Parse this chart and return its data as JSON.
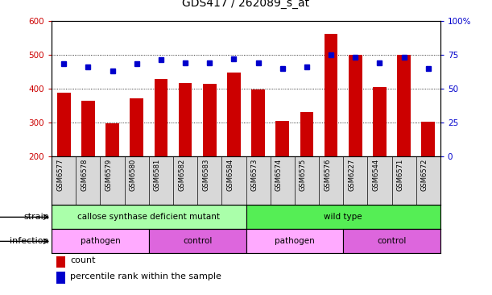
{
  "title": "GDS417 / 262089_s_at",
  "samples": [
    "GSM6577",
    "GSM6578",
    "GSM6579",
    "GSM6580",
    "GSM6581",
    "GSM6582",
    "GSM6583",
    "GSM6584",
    "GSM6573",
    "GSM6574",
    "GSM6575",
    "GSM6576",
    "GSM6227",
    "GSM6544",
    "GSM6571",
    "GSM6572"
  ],
  "counts": [
    388,
    365,
    298,
    370,
    428,
    416,
    413,
    447,
    397,
    304,
    330,
    561,
    500,
    405,
    500,
    303
  ],
  "percentiles": [
    68,
    66,
    63,
    68,
    71,
    69,
    69,
    72,
    69,
    65,
    66,
    75,
    73,
    69,
    73,
    65
  ],
  "ylim_left": [
    200,
    600
  ],
  "ylim_right": [
    0,
    100
  ],
  "yticks_left": [
    200,
    300,
    400,
    500,
    600
  ],
  "yticks_right": [
    0,
    25,
    50,
    75,
    100
  ],
  "bar_color": "#cc0000",
  "dot_color": "#0000cc",
  "bg_color": "#d8d8d8",
  "strain_groups": [
    {
      "label": "callose synthase deficient mutant",
      "start": 0,
      "end": 8,
      "color": "#aaffaa"
    },
    {
      "label": "wild type",
      "start": 8,
      "end": 16,
      "color": "#55ee55"
    }
  ],
  "infection_groups": [
    {
      "label": "pathogen",
      "start": 0,
      "end": 4,
      "color": "#ffaaff"
    },
    {
      "label": "control",
      "start": 4,
      "end": 8,
      "color": "#dd66dd"
    },
    {
      "label": "pathogen",
      "start": 8,
      "end": 12,
      "color": "#ffaaff"
    },
    {
      "label": "control",
      "start": 12,
      "end": 16,
      "color": "#dd66dd"
    }
  ],
  "legend_count_color": "#cc0000",
  "legend_dot_color": "#0000cc",
  "title_fontsize": 10,
  "tick_fontsize": 7.5,
  "label_fontsize": 8,
  "annotation_fontsize": 7.5
}
